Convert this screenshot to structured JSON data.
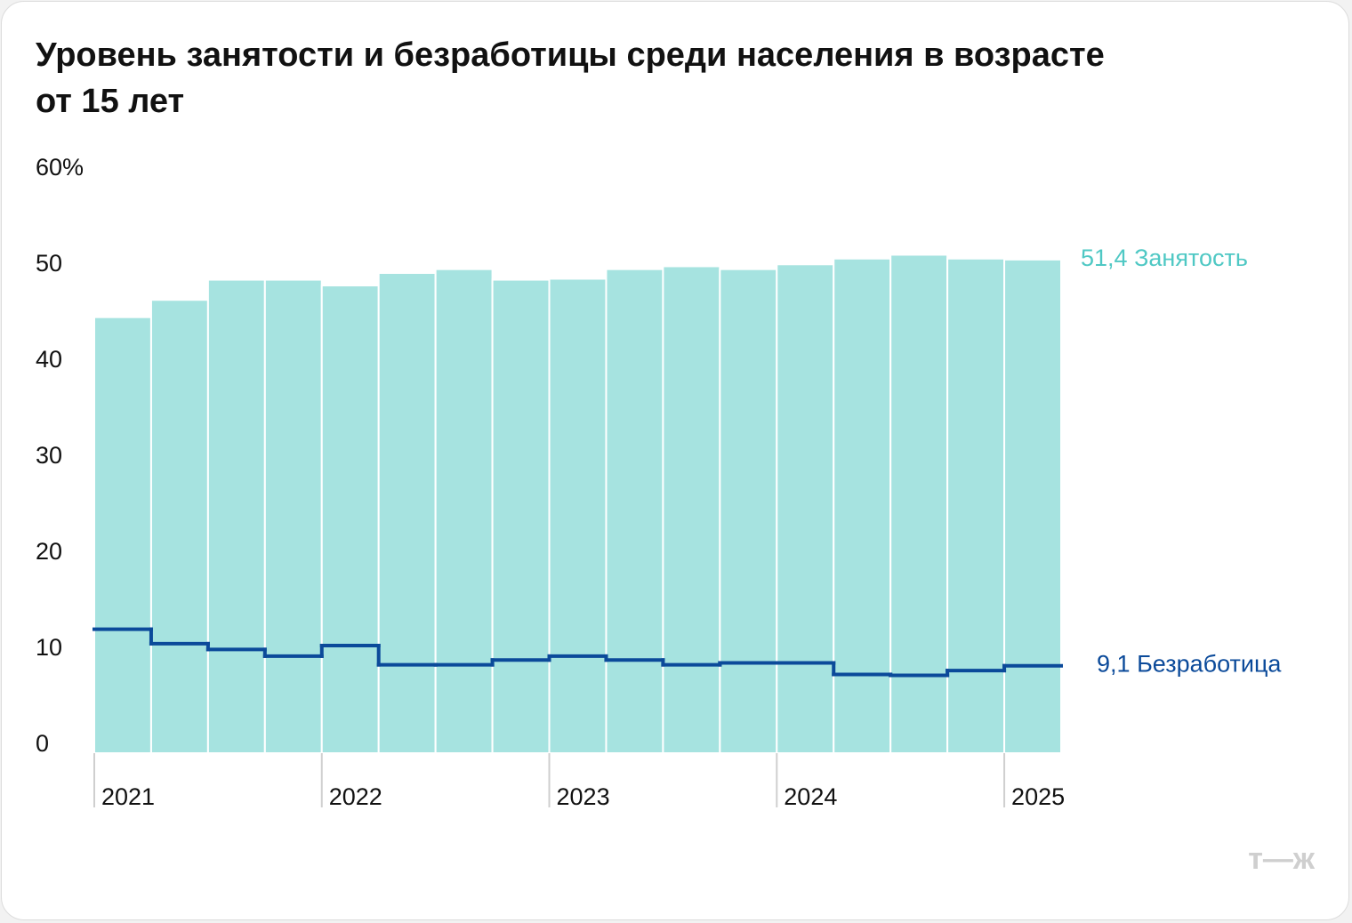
{
  "chart_data": {
    "type": "bar-step",
    "title": "Уровень занятости и безработицы среди населения в возрасте",
    "title_line2": "от 15 лет",
    "categories": [
      "2021",
      null,
      null,
      null,
      "2022",
      null,
      null,
      null,
      "2023",
      null,
      null,
      null,
      "2024",
      null,
      null,
      null,
      "2025"
    ],
    "series": [
      {
        "name": "Занятость",
        "color": "#a6e3e0",
        "label_color": "#4fc8c4",
        "values": [
          45.4,
          47.2,
          49.3,
          49.3,
          48.7,
          50.0,
          50.4,
          49.3,
          49.4,
          50.4,
          50.7,
          50.4,
          50.9,
          51.5,
          51.9,
          51.5,
          51.4
        ],
        "value_labels": [
          null,
          null,
          null,
          null,
          null,
          null,
          null,
          null,
          null,
          null,
          null,
          null,
          null,
          null,
          null,
          null,
          "51,4"
        ]
      },
      {
        "name": "Безработица",
        "color": "#0b4a9a",
        "label_color": "#0b4a9a",
        "values": [
          12.9,
          11.4,
          10.8,
          10.1,
          11.2,
          9.2,
          9.2,
          9.7,
          10.1,
          9.7,
          9.2,
          9.4,
          9.4,
          8.2,
          8.1,
          8.6,
          9.1
        ],
        "value_labels": [
          null,
          null,
          null,
          null,
          null,
          null,
          null,
          null,
          null,
          null,
          null,
          null,
          null,
          null,
          null,
          null,
          "9,1"
        ]
      }
    ],
    "ylim": [
      0,
      60
    ],
    "yticks": [
      0,
      10,
      20,
      30,
      40,
      50,
      {
        "value": 60,
        "label": "60%"
      }
    ]
  },
  "logo": "т—ж"
}
